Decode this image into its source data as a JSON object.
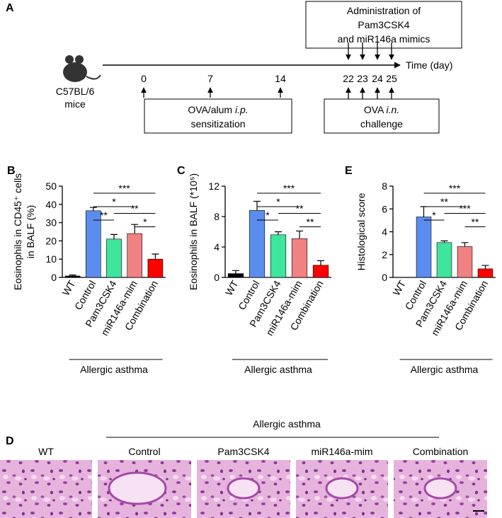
{
  "timeline": {
    "label": "A",
    "subject": [
      "C57BL/6",
      "mice"
    ],
    "days": [
      0,
      7,
      14,
      22,
      23,
      24,
      25
    ],
    "axis_label": "Time (day)",
    "administration": [
      "Administration of",
      "Pam3CSK4",
      "and miR146a mimics"
    ],
    "sensitization": {
      "line1": "OVA/alum",
      "line1_italic": "i.p.",
      "line2": "sensitization"
    },
    "challenge": {
      "line1": "OVA",
      "line1_italic": "i.n.",
      "line2": "challenge"
    }
  },
  "chart_data": [
    {
      "type": "bar",
      "panel": "B",
      "ylabel": [
        "Eosinophils in CD45⁺ cells",
        "in BALF (%)"
      ],
      "categories": [
        "WT",
        "Control",
        "Pam3CSK4",
        "miR146a-mim",
        "Combination"
      ],
      "values": [
        0.8,
        36.5,
        21,
        24,
        10
      ],
      "errors": [
        0.5,
        1.8,
        2.5,
        5,
        2.8
      ],
      "colors": [
        "#000000",
        "#5b8def",
        "#3ee59c",
        "#f08282",
        "#ff0000"
      ],
      "ylim": [
        0,
        50
      ],
      "yticks": [
        0,
        10,
        20,
        30,
        40,
        50
      ],
      "significance": [
        {
          "between": [
            "Control",
            "Combination"
          ],
          "label": "***"
        },
        {
          "between": [
            "Control",
            "miR146a-mim"
          ],
          "label": "*"
        },
        {
          "between": [
            "Control",
            "Pam3CSK4"
          ],
          "label": "**"
        },
        {
          "between": [
            "Pam3CSK4",
            "Combination"
          ],
          "label": "**"
        },
        {
          "between": [
            "miR146a-mim",
            "Combination"
          ],
          "label": "*"
        }
      ],
      "group_label": "Allergic asthma"
    },
    {
      "type": "bar",
      "panel": "C",
      "ylabel": [
        "Eosinophils in BALF (*10⁵)"
      ],
      "categories": [
        "WT",
        "Control",
        "Pam3CSK4",
        "miR146a-mim",
        "Combination"
      ],
      "values": [
        0.5,
        8.8,
        5.6,
        5.1,
        1.6
      ],
      "errors": [
        0.4,
        1.2,
        0.4,
        1.0,
        0.6
      ],
      "colors": [
        "#000000",
        "#5b8def",
        "#3ee59c",
        "#f08282",
        "#ff0000"
      ],
      "ylim": [
        0,
        12
      ],
      "yticks": [
        0,
        4,
        8,
        12
      ],
      "significance": [
        {
          "between": [
            "Control",
            "Combination"
          ],
          "label": "***"
        },
        {
          "between": [
            "Control",
            "miR146a-mim"
          ],
          "label": "*"
        },
        {
          "between": [
            "Control",
            "Pam3CSK4"
          ],
          "label": "*"
        },
        {
          "between": [
            "Pam3CSK4",
            "Combination"
          ],
          "label": "**"
        },
        {
          "between": [
            "miR146a-mim",
            "Combination"
          ],
          "label": "**"
        }
      ],
      "group_label": "Allergic asthma"
    },
    {
      "type": "bar",
      "panel": "E",
      "ylabel": [
        "Histological score"
      ],
      "categories": [
        "WT",
        "Control",
        "Pam3CSK4",
        "miR146a-mim",
        "Combination"
      ],
      "values": [
        0,
        5.3,
        3.05,
        2.7,
        0.75
      ],
      "errors": [
        0,
        0.9,
        0.15,
        0.35,
        0.3
      ],
      "colors": [
        "#000000",
        "#5b8def",
        "#3ee59c",
        "#f08282",
        "#ff0000"
      ],
      "ylim": [
        0,
        8
      ],
      "yticks": [
        0,
        2,
        4,
        6,
        8
      ],
      "significance": [
        {
          "between": [
            "Control",
            "Combination"
          ],
          "label": "***"
        },
        {
          "between": [
            "Control",
            "miR146a-mim"
          ],
          "label": "**"
        },
        {
          "between": [
            "Control",
            "Pam3CSK4"
          ],
          "label": "*"
        },
        {
          "between": [
            "Pam3CSK4",
            "Combination"
          ],
          "label": "***"
        },
        {
          "between": [
            "miR146a-mim",
            "Combination"
          ],
          "label": "**"
        }
      ],
      "group_label": "Allergic asthma"
    }
  ],
  "histology": {
    "label": "D",
    "group_label": "Allergic asthma",
    "panels": [
      "WT",
      "Control",
      "Pam3CSK4",
      "miR146a-mim",
      "Combination"
    ]
  }
}
